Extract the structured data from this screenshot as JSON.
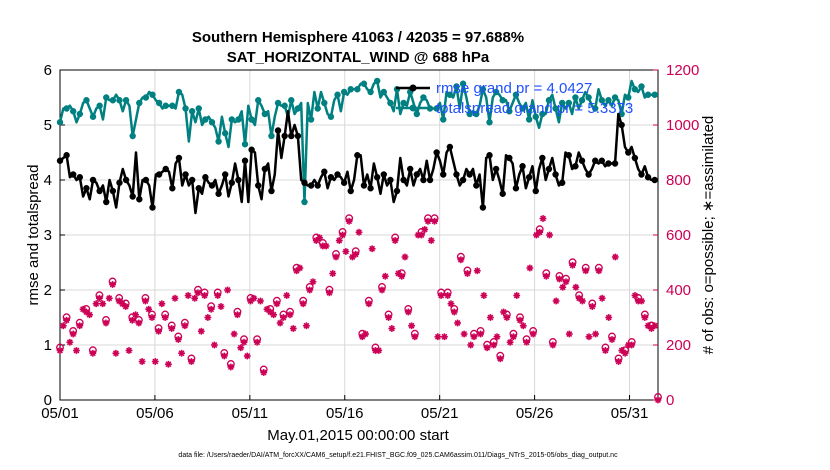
{
  "chart_data": {
    "type": "line",
    "title_line1": "Southern Hemisphere 41063 / 42035 = 97.688%",
    "title_line2": "SAT_HORIZONTAL_WIND @ 688 hPa",
    "xlabel": "May.01,2015 00:00:00 start",
    "ylabel_left": "rmse and totalspread",
    "ylabel_right": "# of obs: o=possible; ∗=assimilated",
    "xlim": [
      0,
      31.5
    ],
    "ylim_left": [
      0,
      6
    ],
    "ylim_right": [
      0,
      1200
    ],
    "x_ticks": [
      0,
      5,
      10,
      15,
      20,
      25,
      30
    ],
    "x_tick_labels": [
      "05/01",
      "05/06",
      "05/11",
      "05/16",
      "05/21",
      "05/26",
      "05/31"
    ],
    "y_ticks_left": [
      "0",
      "1",
      "2",
      "3",
      "4",
      "5",
      "6"
    ],
    "y_ticks_right": [
      "0",
      "200",
      "400",
      "600",
      "800",
      "1000",
      "1200"
    ],
    "grid": true,
    "legend_position": "top-right",
    "legend": [
      "rmse grand pr = 4.0427",
      "totalspread grand pr = 5.3373"
    ],
    "colors": {
      "rmse": "#000000",
      "totalspread": "#008080",
      "obs": "#cc0055",
      "right_axis": "#cc0055",
      "legend_text": "#1f4fff",
      "grid": "#d8d8d8"
    },
    "series": [
      {
        "name": "rmse",
        "axis": "left",
        "y": [
          4.35,
          4.4,
          4.45,
          4.05,
          4.1,
          4.0,
          4.05,
          3.7,
          3.85,
          3.65,
          4.0,
          3.95,
          3.8,
          3.9,
          3.6,
          4.0,
          3.8,
          3.5,
          3.95,
          4.2,
          4.0,
          3.9,
          3.7,
          4.5,
          3.65,
          4.0,
          4.0,
          3.9,
          3.5,
          4.1,
          4.1,
          4.15,
          4.2,
          4.15,
          3.85,
          4.3,
          4.4,
          3.9,
          4.1,
          3.9,
          4.0,
          3.4,
          3.85,
          3.75,
          4.05,
          3.95,
          3.9,
          4.0,
          3.75,
          3.9,
          4.1,
          3.7,
          3.95,
          4.3,
          4.0,
          3.6,
          4.35,
          3.6,
          4.55,
          4.5,
          3.9,
          3.65,
          4.2,
          4.3,
          3.8,
          4.1,
          4.9,
          4.4,
          4.8,
          5.25,
          4.8,
          5.0,
          4.8,
          4.0,
          3.95,
          3.9,
          3.9,
          4.0,
          3.9,
          4.05,
          4.15,
          3.85,
          4.05,
          4.0,
          4.1,
          4.05,
          3.95,
          4.15,
          3.8,
          4.0,
          4.45,
          4.45,
          3.9,
          4.1,
          3.85,
          4.3,
          4.05,
          3.75,
          4.1,
          3.9,
          4.0,
          3.6,
          3.8,
          4.4,
          4.0,
          3.9,
          4.2,
          3.9,
          4.1,
          4.2,
          4.0,
          4.35,
          4.0,
          4.2,
          4.5,
          4.35,
          4.1,
          4.5,
          4.6,
          4.35,
          4.1,
          3.9,
          4.0,
          4.2,
          4.1,
          4.2,
          3.9,
          4.1,
          3.5,
          4.4,
          4.45,
          4.0,
          4.2,
          4.0,
          3.75,
          4.45,
          4.4,
          4.3,
          3.85,
          4.1,
          4.25,
          3.85,
          4.05,
          4.25,
          3.8,
          4.2,
          4.4,
          4.0,
          4.2,
          4.4,
          4.1,
          3.9,
          3.95,
          4.5,
          4.45,
          4.2,
          4.25,
          4.5,
          4.35,
          4.2,
          4.1,
          4.2,
          4.35,
          4.3,
          4.35,
          4.25,
          4.3,
          4.3,
          4.3,
          5.2,
          5.0,
          4.6,
          4.5,
          4.6,
          4.4,
          4.2,
          4.1,
          4.25,
          4.05,
          4.0,
          4.0,
          4.0
        ]
      },
      {
        "name": "totalspread",
        "axis": "left",
        "y": [
          5.05,
          5.3,
          5.3,
          5.35,
          5.25,
          5.05,
          5.2,
          5.4,
          5.45,
          5.3,
          5.15,
          5.3,
          5.35,
          5.1,
          5.5,
          5.45,
          5.45,
          5.55,
          5.45,
          5.25,
          5.45,
          5.35,
          4.8,
          5.1,
          5.4,
          5.5,
          5.5,
          5.6,
          5.55,
          5.45,
          5.4,
          5.3,
          5.35,
          5.35,
          5.35,
          5.3,
          5.6,
          5.55,
          5.3,
          4.7,
          5.25,
          5.05,
          5.3,
          5.0,
          5.1,
          5.15,
          5.05,
          4.95,
          4.7,
          5.15,
          4.85,
          4.6,
          5.1,
          5.05,
          5.1,
          5.25,
          4.65,
          5.35,
          5.1,
          5.0,
          5.45,
          5.35,
          5.2,
          5.25,
          4.8,
          5.15,
          5.4,
          5.35,
          5.35,
          5.15,
          5.45,
          5.2,
          5.3,
          5.4,
          3.6,
          5.4,
          5.1,
          5.6,
          5.3,
          5.6,
          5.4,
          5.2,
          5.15,
          5.45,
          5.55,
          5.25,
          5.6,
          5.55,
          5.65,
          5.65,
          5.65,
          5.75,
          5.75,
          5.65,
          5.6,
          5.75,
          5.8,
          5.5,
          5.6,
          5.5,
          5.4,
          5.25,
          5.65,
          5.2,
          5.4,
          5.35,
          5.6,
          5.4,
          5.2,
          5.4,
          5.5,
          5.45,
          5.3,
          5.3,
          5.3,
          5.4,
          5.1,
          5.6,
          5.55,
          5.5,
          5.7,
          5.3,
          5.75,
          5.5,
          5.2,
          5.25,
          5.2,
          5.35,
          5.65,
          5.5,
          5.05,
          5.5,
          5.6,
          5.55,
          5.45,
          5.45,
          5.25,
          5.4,
          5.55,
          5.4,
          5.3,
          5.4,
          5.1,
          5.45,
          5.15,
          4.95,
          5.2,
          5.2,
          5.45,
          5.55,
          5.3,
          5.05,
          5.4,
          5.3,
          5.4,
          5.2,
          5.5,
          5.3,
          5.45,
          5.6,
          5.5,
          5.35,
          5.3,
          5.65,
          5.45,
          5.35,
          5.45,
          5.35,
          5.5,
          5.45,
          5.2,
          5.55,
          5.5,
          5.8,
          5.65,
          5.6,
          5.7,
          5.5,
          5.55,
          5.55,
          5.55,
          5.55
        ]
      },
      {
        "name": "obs",
        "axis": "right",
        "y": [
          180,
          270,
          290,
          210,
          240,
          180,
          270,
          330,
          320,
          310,
          170,
          350,
          370,
          350,
          280,
          370,
          420,
          170,
          360,
          350,
          340,
          180,
          290,
          310,
          280,
          140,
          360,
          330,
          300,
          140,
          250,
          350,
          300,
          130,
          260,
          370,
          220,
          170,
          270,
          380,
          140,
          370,
          390,
          250,
          380,
          300,
          330,
          200,
          380,
          340,
          160,
          400,
          120,
          240,
          310,
          190,
          210,
          160,
          360,
          370,
          210,
          360,
          100,
          330,
          320,
          310,
          350,
          280,
          300,
          380,
          310,
          260,
          470,
          480,
          350,
          270,
          400,
          430,
          580,
          590,
          560,
          560,
          390,
          460,
          520,
          580,
          600,
          540,
          650,
          520,
          530,
          610,
          230,
          240,
          350,
          550,
          180,
          180,
          400,
          450,
          300,
          260,
          580,
          460,
          450,
          520,
          320,
          270,
          230,
          600,
          600,
          620,
          650,
          580,
          650,
          230,
          380,
          230,
          380,
          350,
          320,
          280,
          510,
          240,
          460,
          200,
          230,
          470,
          240,
          380,
          190,
          300,
          200,
          230,
          150,
          320,
          300,
          210,
          230,
          380,
          290,
          270,
          210,
          480,
          240,
          600,
          610,
          660,
          450,
          600,
          200,
          360,
          440,
          410,
          430,
          240,
          490,
          410,
          370,
          360,
          470,
          230,
          340,
          240,
          470,
          370,
          180,
          300,
          220,
          520,
          140,
          180,
          170,
          200,
          200,
          380,
          360,
          360,
          300,
          270,
          260,
          270,
          0
        ]
      }
    ],
    "footnote": "data file: /Users/raeder/DAI/ATM_forcXX/CAM6_setup/f.e21.FHIST_BGC.f09_025.CAM6assim.011/Diags_NTrS_2015-05/obs_diag_output.nc"
  }
}
